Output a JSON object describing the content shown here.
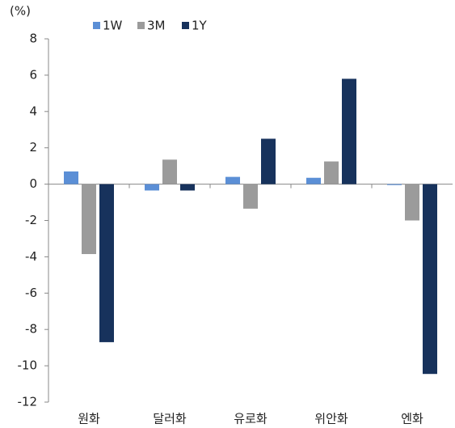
{
  "chart_data": {
    "type": "bar",
    "unit": "(%)",
    "categories": [
      "원화",
      "달러화",
      "유로화",
      "위안화",
      "엔화"
    ],
    "series": [
      {
        "name": "1W",
        "color": "#5b8fd6",
        "values": [
          0.7,
          -0.35,
          0.4,
          0.35,
          -0.05
        ]
      },
      {
        "name": "3M",
        "color": "#9b9b9b",
        "values": [
          -3.85,
          1.35,
          -1.35,
          1.25,
          -2.0
        ]
      },
      {
        "name": "1Y",
        "color": "#17325c",
        "values": [
          -8.7,
          -0.35,
          2.5,
          5.8,
          -10.45
        ]
      }
    ],
    "ylim": [
      -12,
      8
    ],
    "yticks": [
      -12,
      -10,
      -8,
      -6,
      -4,
      -2,
      0,
      2,
      4,
      6,
      8
    ],
    "grid": false,
    "legend": "top"
  }
}
